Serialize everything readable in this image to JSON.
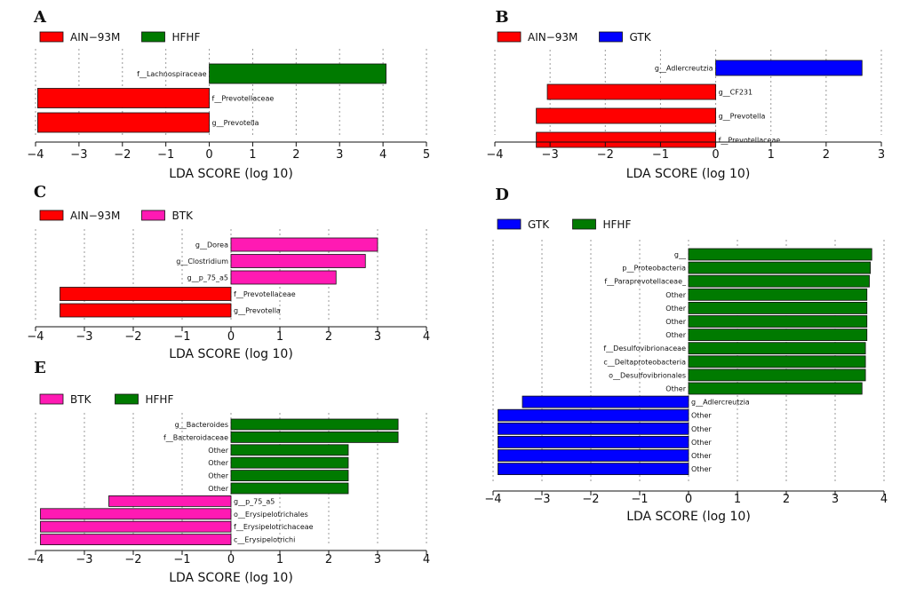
{
  "chart_data": [
    {
      "type": "bar",
      "panel": "A",
      "orientation": "horizontal",
      "xlabel": "LDA SCORE (log 10)",
      "xlim": [
        -4,
        5
      ],
      "xticks": [
        "−4",
        "−3",
        "−2",
        "−1",
        "0",
        "1",
        "2",
        "3",
        "4",
        "5"
      ],
      "legend": [
        {
          "name": "AIN−93M",
          "color": "#ff0000"
        },
        {
          "name": "HFHF",
          "color": "#007a00"
        }
      ],
      "bars": [
        {
          "label": "f__Lachnospiraceae",
          "value": 4.07,
          "group": 1
        },
        {
          "label": "f__Prevotellaceae",
          "value": -3.95,
          "group": 0
        },
        {
          "label": "g__Prevotella",
          "value": -3.95,
          "group": 0
        }
      ]
    },
    {
      "type": "bar",
      "panel": "B",
      "orientation": "horizontal",
      "xlabel": "LDA SCORE (log 10)",
      "xlim": [
        -4,
        3
      ],
      "xticks": [
        "−4",
        "−3",
        "−2",
        "−1",
        "0",
        "1",
        "2",
        "3"
      ],
      "legend": [
        {
          "name": "AIN−93M",
          "color": "#ff0000"
        },
        {
          "name": "GTK",
          "color": "#0000ff"
        }
      ],
      "bars": [
        {
          "label": "g__Adlercreutzia",
          "value": 2.65,
          "group": 1
        },
        {
          "label": "g__CF231",
          "value": -3.05,
          "group": 0
        },
        {
          "label": "g__Prevotella",
          "value": -3.25,
          "group": 0
        },
        {
          "label": "f__Prevotellaceae",
          "value": -3.25,
          "group": 0
        }
      ]
    },
    {
      "type": "bar",
      "panel": "C",
      "orientation": "horizontal",
      "xlabel": "LDA SCORE (log 10)",
      "xlim": [
        -4,
        4
      ],
      "xticks": [
        "−4",
        "−3",
        "−2",
        "−1",
        "0",
        "1",
        "2",
        "3",
        "4"
      ],
      "legend": [
        {
          "name": "AIN−93M",
          "color": "#ff0000"
        },
        {
          "name": "BTK",
          "color": "#ff1ab3"
        }
      ],
      "bars": [
        {
          "label": "g__Dorea",
          "value": 3.0,
          "group": 1
        },
        {
          "label": "g__Clostridium",
          "value": 2.75,
          "group": 1
        },
        {
          "label": "g__p_75_a5",
          "value": 2.15,
          "group": 1
        },
        {
          "label": "f__Prevotellaceae",
          "value": -3.5,
          "group": 0
        },
        {
          "label": "g__Prevotella",
          "value": -3.5,
          "group": 0
        }
      ]
    },
    {
      "type": "bar",
      "panel": "D",
      "orientation": "horizontal",
      "xlabel": "LDA SCORE (log 10)",
      "xlim": [
        -4,
        4
      ],
      "xticks": [
        "−4",
        "−3",
        "−2",
        "−1",
        "0",
        "1",
        "2",
        "3",
        "4"
      ],
      "legend": [
        {
          "name": "GTK",
          "color": "#0000ff"
        },
        {
          "name": "HFHF",
          "color": "#007a00"
        }
      ],
      "bars": [
        {
          "label": "g__",
          "value": 3.75,
          "group": 1
        },
        {
          "label": "p__Proteobacteria",
          "value": 3.72,
          "group": 1
        },
        {
          "label": "f__Paraprevotellaceae_",
          "value": 3.7,
          "group": 1
        },
        {
          "label": "Other",
          "value": 3.65,
          "group": 1
        },
        {
          "label": "Other",
          "value": 3.65,
          "group": 1
        },
        {
          "label": "Other",
          "value": 3.65,
          "group": 1
        },
        {
          "label": "Other",
          "value": 3.65,
          "group": 1
        },
        {
          "label": "f__Desulfovibrionaceae",
          "value": 3.62,
          "group": 1
        },
        {
          "label": "c__Deltaproteobacteria",
          "value": 3.62,
          "group": 1
        },
        {
          "label": "o__Desulfovibrionales",
          "value": 3.62,
          "group": 1
        },
        {
          "label": "Other",
          "value": 3.55,
          "group": 1
        },
        {
          "label": "g__Adlercreutzia",
          "value": -3.4,
          "group": 0
        },
        {
          "label": "Other",
          "value": -3.9,
          "group": 0
        },
        {
          "label": "Other",
          "value": -3.9,
          "group": 0
        },
        {
          "label": "Other",
          "value": -3.9,
          "group": 0
        },
        {
          "label": "Other",
          "value": -3.9,
          "group": 0
        },
        {
          "label": "Other",
          "value": -3.9,
          "group": 0
        }
      ]
    },
    {
      "type": "bar",
      "panel": "E",
      "orientation": "horizontal",
      "xlabel": "LDA SCORE (log 10)",
      "xlim": [
        -4,
        4
      ],
      "xticks": [
        "−4",
        "−3",
        "−2",
        "−1",
        "0",
        "1",
        "2",
        "3",
        "4"
      ],
      "legend": [
        {
          "name": "BTK",
          "color": "#ff1ab3"
        },
        {
          "name": "HFHF",
          "color": "#007a00"
        }
      ],
      "bars": [
        {
          "label": "g__Bacteroides",
          "value": 3.42,
          "group": 1
        },
        {
          "label": "f__Bacteroidaceae",
          "value": 3.42,
          "group": 1
        },
        {
          "label": "Other",
          "value": 2.4,
          "group": 1
        },
        {
          "label": "Other",
          "value": 2.4,
          "group": 1
        },
        {
          "label": "Other",
          "value": 2.4,
          "group": 1
        },
        {
          "label": "Other",
          "value": 2.4,
          "group": 1
        },
        {
          "label": "g__p_75_a5",
          "value": -2.5,
          "group": 0
        },
        {
          "label": "o__Erysipelotrichales",
          "value": -3.9,
          "group": 0
        },
        {
          "label": "f__Erysipelotrichaceae",
          "value": -3.9,
          "group": 0
        },
        {
          "label": "c__Erysipelotrichi",
          "value": -3.9,
          "group": 0
        }
      ]
    }
  ]
}
